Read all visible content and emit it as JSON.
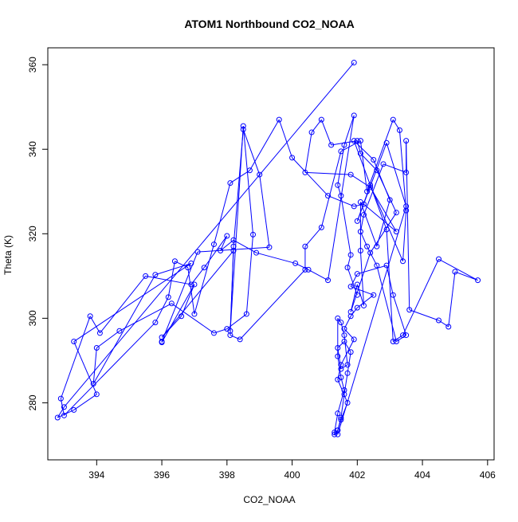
{
  "chart_data": {
    "type": "line",
    "title": "ATOM1 Northbound CO2_NOAA",
    "xlabel": "CO2_NOAA",
    "ylabel": "Theta (K)",
    "xlim": [
      392.5,
      406.2
    ],
    "ylim": [
      266.5,
      364.0
    ],
    "xticks": [
      394,
      396,
      398,
      400,
      402,
      404,
      406
    ],
    "yticks": [
      280,
      300,
      320,
      340,
      360
    ],
    "grid": false,
    "series_color": "#0000ff",
    "markers": "open-circle",
    "series": [
      {
        "name": "",
        "x": [
          401.9,
          393.0,
          392.8,
          393.3,
          394.0,
          393.3,
          396.9,
          395.8,
          393.9,
          394.0,
          394.7,
          396.3,
          397.6,
          398.0,
          398.6,
          398.8,
          398.5,
          398.1,
          398.2,
          396.0,
          396.6,
          397.0,
          396.0,
          396.0,
          397.1,
          399.3,
          399.0,
          398.5,
          398.2,
          398.1,
          398.4,
          400.4,
          400.4,
          400.9,
          401.5,
          402.1,
          402.3,
          403.1,
          403.3,
          403.5,
          403.4,
          402.4,
          402.0,
          402.9,
          403.5,
          401.4,
          401.4,
          401.5,
          401.6,
          401.7,
          401.8,
          401.6,
          401.4,
          401.5,
          401.7,
          401.6,
          401.5,
          401.4,
          401.4,
          401.5,
          401.6,
          401.4,
          401.3,
          401.3,
          401.4,
          401.5,
          401.7,
          401.4,
          401.5,
          401.9,
          401.6,
          401.8,
          402.0,
          402.5,
          401.8,
          402.0,
          402.9,
          403.1,
          403.5,
          403.2,
          402.6,
          402.3,
          402.1,
          402.2,
          402.8,
          403.5,
          403.5,
          403.6,
          404.5,
          404.8,
          405.0,
          405.7,
          404.5,
          403.4,
          403.1,
          402.9,
          401.9,
          402.5,
          403.0,
          402.6,
          402.1,
          402.1,
          402.2,
          402.0,
          401.8,
          402.4,
          403.2,
          402.6,
          402.1,
          402.0,
          401.2,
          400.9,
          400.6,
          400.4,
          401.8,
          402.4,
          403.2,
          402.2,
          401.9,
          401.1,
          400.0,
          399.6,
          398.7,
          398.1,
          397.6,
          397.0,
          396.8,
          396.4,
          396.2,
          395.8,
          393.0,
          392.9,
          393.8,
          394.1,
          395.5,
          396.9,
          397.3,
          398.0,
          397.8,
          398.2,
          398.9,
          400.1,
          400.5,
          401.1,
          401.9,
          401.6,
          401.4,
          401.5,
          401.8,
          401.7,
          402.0
        ],
        "y": [
          360.5,
          279.0,
          276.5,
          278.3,
          282.0,
          294.5,
          313.0,
          310.3,
          284.5,
          293.0,
          297.0,
          303.5,
          296.5,
          297.5,
          301.0,
          319.8,
          345.5,
          297.0,
          316.0,
          295.5,
          300.5,
          308.0,
          294.3,
          294.5,
          315.7,
          316.8,
          334.0,
          344.7,
          317.0,
          296.0,
          295.0,
          311.5,
          317.0,
          321.5,
          339.5,
          342.0,
          330.0,
          347.0,
          344.5,
          325.5,
          313.5,
          331.5,
          323.0,
          341.5,
          326.5,
          272.5,
          273.5,
          276.5,
          282.0,
          287.0,
          292.0,
          294.5,
          293.0,
          288.0,
          289.0,
          296.0,
          299.0,
          300.0,
          291.0,
          286.0,
          283.0,
          277.5,
          273.0,
          272.5,
          273.5,
          276.0,
          280.0,
          285.5,
          289.0,
          295.0,
          297.5,
          300.5,
          302.5,
          305.5,
          307.5,
          310.5,
          312.5,
          305.5,
          296.0,
          294.5,
          312.5,
          317.0,
          320.5,
          324.5,
          336.5,
          334.5,
          342.0,
          302.0,
          299.5,
          298.0,
          311.0,
          309.0,
          314.0,
          296.0,
          294.5,
          321.0,
          342.0,
          337.5,
          328.0,
          317.0,
          327.5,
          316.0,
          303.0,
          308.0,
          301.5,
          315.5,
          325.0,
          335.0,
          339.0,
          342.0,
          341.0,
          347.0,
          344.0,
          334.5,
          334.0,
          331.0,
          320.5,
          327.0,
          326.5,
          329.0,
          338.0,
          347.0,
          335.0,
          332.0,
          317.5,
          301.0,
          312.0,
          313.5,
          305.0,
          299.0,
          277.0,
          281.0,
          300.5,
          296.5,
          310.0,
          308.0,
          312.0,
          319.5,
          316.0,
          318.5,
          315.5,
          313.0,
          311.5,
          309.0,
          348.0,
          341.0,
          331.5,
          329.0,
          315.0,
          312.0,
          305.5
        ]
      }
    ]
  }
}
